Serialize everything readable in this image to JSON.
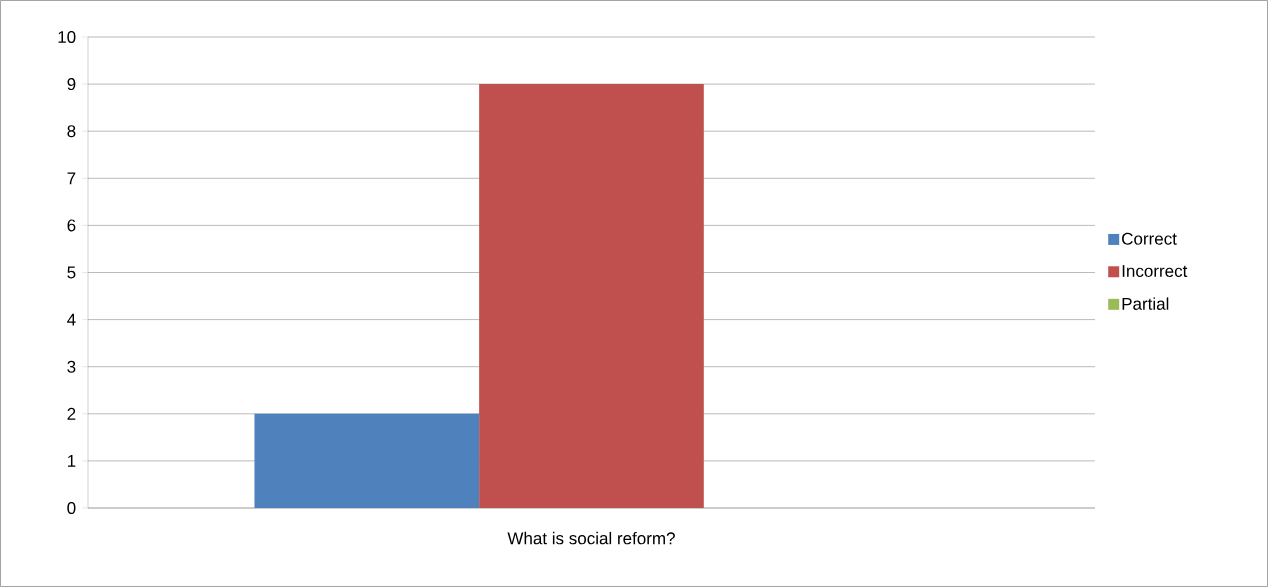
{
  "chart_data": {
    "type": "bar",
    "categories": [
      "What is social reform?"
    ],
    "series": [
      {
        "name": "Correct",
        "color": "#4f81bd",
        "values": [
          2
        ]
      },
      {
        "name": "Incorrect",
        "color": "#c0504d",
        "values": [
          9
        ]
      },
      {
        "name": "Partial",
        "color": "#9bbb59",
        "values": [
          0
        ]
      }
    ],
    "ylim": [
      0,
      10
    ],
    "yticks": [
      0,
      1,
      2,
      3,
      4,
      5,
      6,
      7,
      8,
      9,
      10
    ],
    "grid": "y",
    "legend": "right"
  }
}
